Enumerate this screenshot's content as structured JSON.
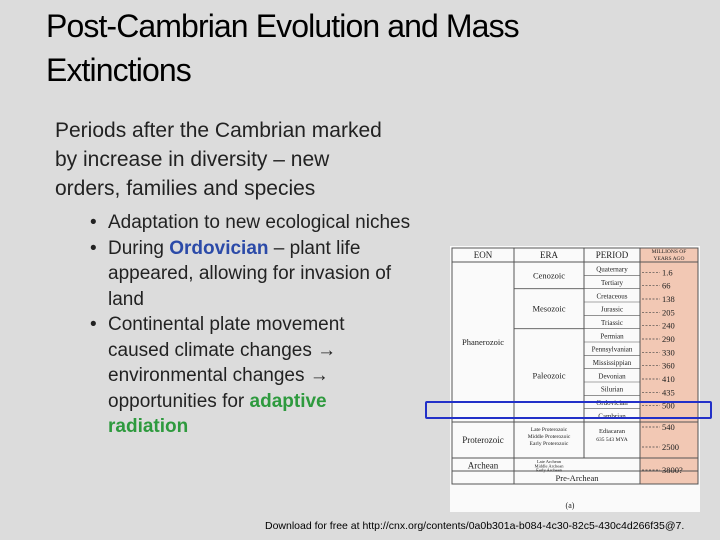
{
  "slide": {
    "title_line1": "Post-Cambrian Evolution and Mass",
    "title_line2": "Extinctions",
    "intro_line1": "Periods after the Cambrian marked",
    "intro_line2": "by increase in diversity – new",
    "intro_line3": "orders, families and species",
    "bullet1": "Adaptation to new ecological niches",
    "bullet2_pre": "During ",
    "bullet2_kw": "Ordovician",
    "bullet2_line1_post": " – plant life",
    "bullet2_line2": "appeared, allowing for invasion  of",
    "bullet2_line3": "land",
    "bullet3_line1": "Continental plate movement",
    "bullet3_line2": "caused climate changes →",
    "bullet3_line3": "environmental changes →",
    "bullet3_line4_pre": "opportunities for ",
    "bullet3_kw1": "adaptive",
    "bullet3_kw2": "radiation",
    "footer": "Download for free at http://cnx.org/contents/0a0b301a-b084-4c30-82c5-430c4d266f35@7."
  },
  "geo_chart": {
    "headers": [
      "EON",
      "ERA",
      "PERIOD",
      "MILLIONS OF YEARS AGO"
    ],
    "eons": [
      "Phanerozoic",
      "Proterozoic",
      "Archean",
      "Pre-Archean"
    ],
    "eras": [
      "Cenozoic",
      "Mesozoic",
      "Paleozoic"
    ],
    "proterozoic_eras": [
      "Late Proterozoic",
      "Middle Proterozoic",
      "Early Proterozoic"
    ],
    "archean_eras": [
      "Late Archean",
      "Middle Archean",
      "Early Archean"
    ],
    "periods": [
      "Quaternary",
      "Tertiary",
      "Cretaceous",
      "Jurassic",
      "Triassic",
      "Permian",
      "Pennsylvanian",
      "Mississippian",
      "Devonian",
      "Silurian",
      "Ordovician",
      "Cambrian"
    ],
    "ediacaran_line1": "Ediacaran",
    "ediacaran_line2": "635 543 MYA",
    "ages": [
      "1.6",
      "66",
      "138",
      "205",
      "240",
      "290",
      "330",
      "360",
      "410",
      "435",
      "500",
      "540",
      "2500",
      "3800?"
    ],
    "caption": "(a)",
    "highlighted_period": "Ordovician",
    "highlight_color": "#2230c8",
    "age_column_color": "#f2c8b4"
  }
}
